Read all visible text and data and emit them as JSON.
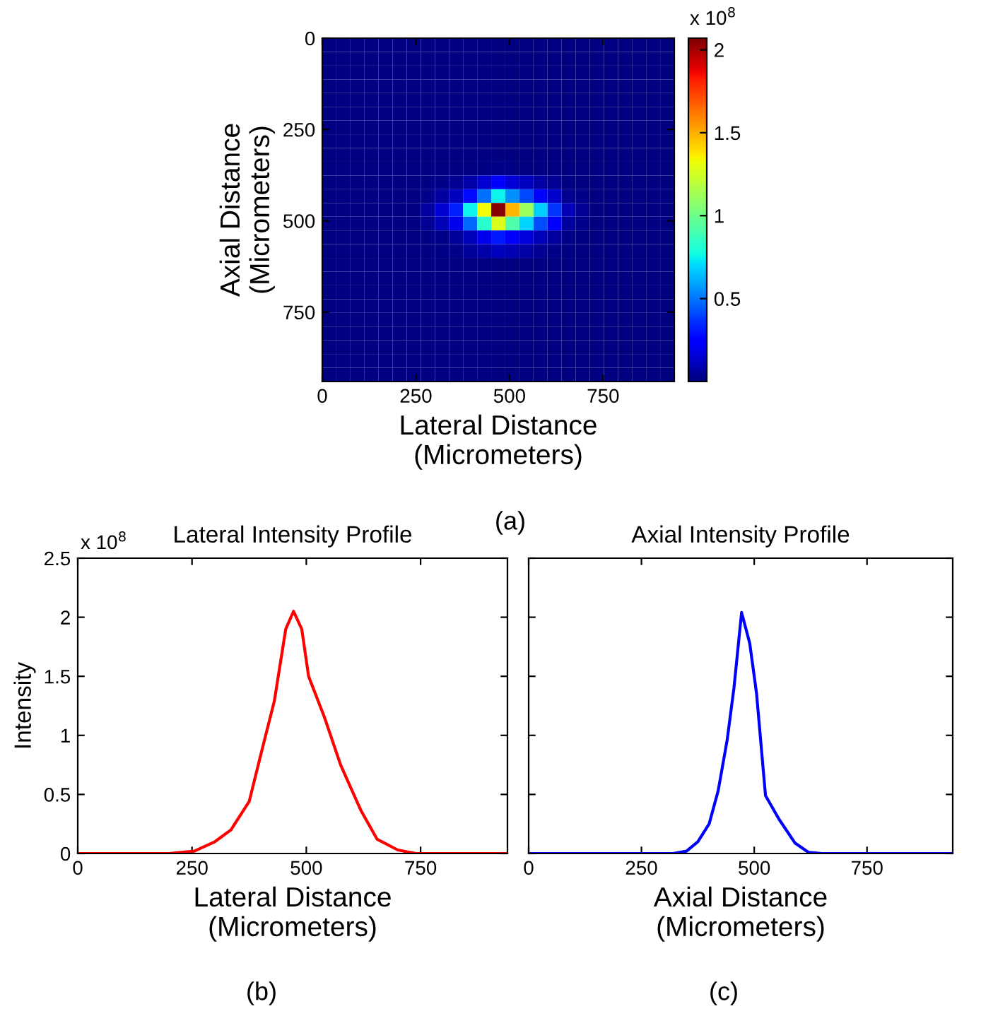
{
  "chart_data": [
    {
      "type": "heatmap",
      "xlabel": "Lateral Distance\n(Micrometers)",
      "ylabel": "Axial Distance\n(Micrometers)",
      "xlim": [
        0,
        940
      ],
      "ylim": [
        940,
        0
      ],
      "xticks": [
        0,
        250,
        500,
        750
      ],
      "yticks": [
        0,
        250,
        500,
        750
      ],
      "clim": [
        0,
        2.07
      ],
      "cticks": [
        0.5,
        1,
        1.5,
        2
      ],
      "annotations": [
        "x 10$^{8}$",
        "(a)"
      ],
      "cells": [
        [
          0,
          0,
          0,
          0,
          0,
          0,
          0,
          0,
          0,
          0,
          0,
          0,
          0,
          0,
          0,
          0,
          0,
          0,
          0,
          0,
          0,
          0,
          0,
          0,
          0
        ],
        [
          0,
          0,
          0,
          0,
          0,
          0,
          0,
          0,
          0,
          0,
          0,
          0,
          0,
          0,
          0,
          0,
          0,
          0,
          0,
          0,
          0,
          0,
          0,
          0,
          0
        ],
        [
          0,
          0,
          0,
          0,
          0,
          0,
          0,
          0,
          0,
          0,
          0,
          0,
          0,
          0,
          0,
          0,
          0,
          0,
          0,
          0,
          0,
          0,
          0,
          0,
          0
        ],
        [
          0,
          0,
          0,
          0,
          0,
          0,
          0,
          0,
          0,
          0,
          0,
          0,
          0,
          0,
          0,
          0,
          0,
          0,
          0,
          0,
          0,
          0,
          0,
          0,
          0
        ],
        [
          0,
          0,
          0,
          0,
          0,
          0,
          0,
          0,
          0,
          0,
          0,
          0,
          0,
          0,
          0,
          0,
          0,
          0,
          0,
          0,
          0,
          0,
          0,
          0,
          0
        ],
        [
          0,
          0,
          0,
          0,
          0,
          0,
          0,
          0,
          0,
          0,
          0,
          0,
          0,
          0,
          0,
          0,
          0,
          0,
          0,
          0,
          0,
          0,
          0,
          0,
          0
        ],
        [
          0,
          0,
          0,
          0,
          0,
          0,
          0,
          0,
          0,
          0,
          0,
          0,
          0,
          0,
          0,
          0,
          0,
          0,
          0,
          0,
          0,
          0,
          0,
          0,
          0
        ],
        [
          0,
          0,
          0,
          0,
          0,
          0,
          0,
          0,
          0,
          0,
          0,
          0,
          0,
          0,
          0,
          0,
          0,
          0,
          0,
          0,
          0,
          0,
          0,
          0,
          0
        ],
        [
          0,
          0,
          0,
          0,
          0,
          0,
          0,
          0,
          0,
          0,
          0,
          0,
          0,
          0,
          0,
          0,
          0,
          0,
          0,
          0,
          0,
          0,
          0,
          0,
          0
        ],
        [
          0,
          0,
          0,
          0,
          0,
          0,
          0,
          0,
          0,
          0,
          0,
          0.01,
          0.02,
          0.01,
          0,
          0,
          0,
          0,
          0,
          0,
          0,
          0,
          0,
          0,
          0
        ],
        [
          0,
          0,
          0,
          0,
          0,
          0,
          0,
          0.01,
          0.02,
          0.04,
          0.08,
          0.15,
          0.23,
          0.16,
          0.12,
          0.07,
          0.04,
          0.01,
          0,
          0,
          0,
          0,
          0,
          0,
          0
        ],
        [
          0,
          0,
          0,
          0,
          0,
          0,
          0,
          0.02,
          0.06,
          0.12,
          0.28,
          0.49,
          0.76,
          0.55,
          0.41,
          0.25,
          0.14,
          0.04,
          0.02,
          0,
          0,
          0,
          0,
          0,
          0
        ],
        [
          0,
          0,
          0,
          0,
          0,
          0,
          0,
          0.06,
          0.15,
          0.33,
          0.76,
          1.33,
          2.05,
          1.48,
          1.11,
          0.68,
          0.37,
          0.1,
          0.04,
          0,
          0,
          0,
          0,
          0,
          0
        ],
        [
          0,
          0,
          0,
          0,
          0,
          0,
          0,
          0.04,
          0.1,
          0.2,
          0.47,
          0.83,
          1.27,
          0.92,
          0.69,
          0.42,
          0.23,
          0.06,
          0.03,
          0,
          0,
          0,
          0,
          0,
          0
        ],
        [
          0,
          0,
          0,
          0,
          0,
          0,
          0,
          0.01,
          0.02,
          0.05,
          0.11,
          0.2,
          0.31,
          0.22,
          0.17,
          0.1,
          0.06,
          0.02,
          0.01,
          0,
          0,
          0,
          0,
          0,
          0
        ],
        [
          0,
          0,
          0,
          0,
          0,
          0,
          0,
          0,
          0.01,
          0.02,
          0.05,
          0.08,
          0.12,
          0.09,
          0.07,
          0.04,
          0.02,
          0.01,
          0,
          0,
          0,
          0,
          0,
          0,
          0
        ],
        [
          0,
          0,
          0,
          0,
          0,
          0,
          0,
          0,
          0,
          0,
          0,
          0,
          0,
          0,
          0,
          0,
          0,
          0,
          0,
          0,
          0,
          0,
          0,
          0,
          0
        ],
        [
          0,
          0,
          0,
          0,
          0,
          0,
          0,
          0,
          0,
          0,
          0,
          0,
          0,
          0,
          0,
          0,
          0,
          0,
          0,
          0,
          0,
          0,
          0,
          0,
          0
        ],
        [
          0,
          0,
          0,
          0,
          0,
          0,
          0,
          0,
          0,
          0,
          0,
          0,
          0,
          0,
          0,
          0,
          0,
          0,
          0,
          0,
          0,
          0,
          0,
          0,
          0
        ],
        [
          0,
          0,
          0,
          0,
          0,
          0,
          0,
          0,
          0,
          0,
          0,
          0,
          0,
          0,
          0,
          0,
          0,
          0,
          0,
          0,
          0,
          0,
          0,
          0,
          0
        ],
        [
          0,
          0,
          0,
          0,
          0,
          0,
          0,
          0,
          0,
          0,
          0,
          0,
          0,
          0,
          0,
          0,
          0,
          0,
          0,
          0,
          0,
          0,
          0,
          0,
          0
        ],
        [
          0,
          0,
          0,
          0,
          0,
          0,
          0,
          0,
          0,
          0,
          0,
          0,
          0,
          0,
          0,
          0,
          0,
          0,
          0,
          0,
          0,
          0,
          0,
          0,
          0
        ],
        [
          0,
          0,
          0,
          0,
          0,
          0,
          0,
          0,
          0,
          0,
          0,
          0,
          0,
          0,
          0,
          0,
          0,
          0,
          0,
          0,
          0,
          0,
          0,
          0,
          0
        ],
        [
          0,
          0,
          0,
          0,
          0,
          0,
          0,
          0,
          0,
          0,
          0,
          0,
          0,
          0,
          0,
          0,
          0,
          0,
          0,
          0,
          0,
          0,
          0,
          0,
          0
        ],
        [
          0,
          0,
          0,
          0,
          0,
          0,
          0,
          0,
          0,
          0,
          0,
          0,
          0,
          0,
          0,
          0,
          0,
          0,
          0,
          0,
          0,
          0,
          0,
          0,
          0
        ]
      ]
    },
    {
      "type": "line",
      "title": "Lateral Intensity Profile",
      "xlabel": "Lateral Distance\n(Micrometers)",
      "ylabel": "Intensity",
      "xlim": [
        0,
        940
      ],
      "ylim": [
        0,
        2.5
      ],
      "xticks": [
        0,
        250,
        500,
        750
      ],
      "yticks": [
        0,
        0.5,
        1,
        1.5,
        2,
        2.5
      ],
      "annotations": [
        "x 10$^{8}$",
        "(b)"
      ],
      "series": [
        {
          "color": "#ff0000",
          "x": [
            0,
            200,
            255,
            300,
            335,
            375,
            400,
            430,
            455,
            472,
            490,
            505,
            540,
            575,
            620,
            655,
            700,
            740,
            940
          ],
          "values": [
            0,
            0,
            0.02,
            0.1,
            0.2,
            0.44,
            0.83,
            1.29,
            1.9,
            2.05,
            1.9,
            1.5,
            1.15,
            0.75,
            0.36,
            0.12,
            0.03,
            0,
            0
          ]
        }
      ]
    },
    {
      "type": "line",
      "title": "Axial Intensity Profile",
      "xlabel": "Axial Distance\n(Micrometers)",
      "xlim": [
        0,
        940
      ],
      "ylim": [
        0,
        2.5
      ],
      "xticks": [
        0,
        250,
        500,
        750
      ],
      "yticks": [
        0,
        0.5,
        1,
        1.5,
        2,
        2.5
      ],
      "tick_labels": "x",
      "annotations": [
        "(c)"
      ],
      "series": [
        {
          "color": "#0000ff",
          "x": [
            0,
            320,
            350,
            375,
            400,
            420,
            440,
            455,
            472,
            490,
            505,
            525,
            555,
            590,
            620,
            650,
            940
          ],
          "values": [
            0,
            0,
            0.02,
            0.1,
            0.25,
            0.53,
            0.96,
            1.4,
            2.04,
            1.78,
            1.36,
            0.49,
            0.29,
            0.09,
            0.01,
            0,
            0
          ]
        }
      ]
    }
  ]
}
